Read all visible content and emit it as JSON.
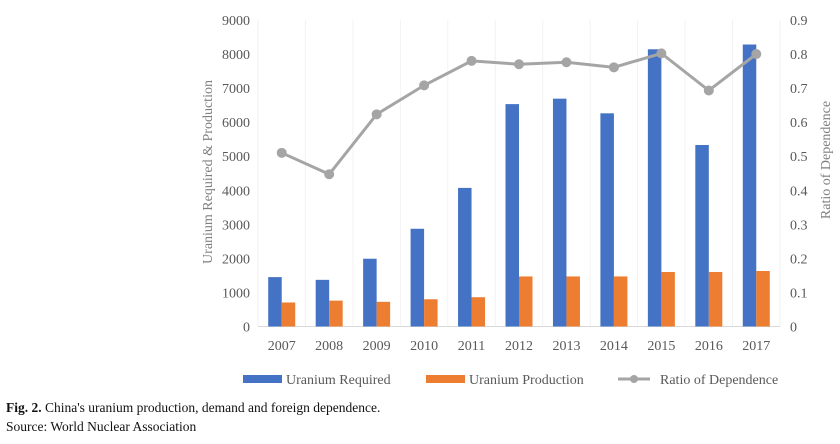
{
  "chart_data": {
    "type": "bar+line",
    "categories": [
      "2007",
      "2008",
      "2009",
      "2010",
      "2011",
      "2012",
      "2013",
      "2014",
      "2015",
      "2016",
      "2017"
    ],
    "series": [
      {
        "name": "Uranium Required",
        "type": "bar",
        "axis": "left",
        "color": "#4472c4",
        "values": [
          1450,
          1370,
          1990,
          2870,
          4070,
          6530,
          6690,
          6260,
          8140,
          5330,
          8280
        ]
      },
      {
        "name": "Uranium Production",
        "type": "bar",
        "axis": "left",
        "color": "#ed7d31",
        "values": [
          705,
          760,
          725,
          800,
          860,
          1470,
          1470,
          1470,
          1600,
          1600,
          1630
        ]
      },
      {
        "name": "Ratio of Dependence",
        "type": "line",
        "axis": "right",
        "color": "#a5a5a5",
        "values": [
          0.51,
          0.447,
          0.623,
          0.708,
          0.78,
          0.77,
          0.776,
          0.761,
          0.802,
          0.693,
          0.8
        ]
      }
    ],
    "ylabel": "Uranium Required & Production",
    "y2label": "Ratio of Dependence",
    "ylim": [
      0,
      9000
    ],
    "y2lim": [
      0,
      0.9
    ],
    "yticks": [
      "0",
      "1000",
      "2000",
      "3000",
      "4000",
      "5000",
      "6000",
      "7000",
      "8000",
      "9000"
    ],
    "y2ticks": [
      "0",
      "0.1",
      "0.2",
      "0.3",
      "0.4",
      "0.5",
      "0.6",
      "0.7",
      "0.8",
      "0.9"
    ],
    "grid": true,
    "legend": "bottom"
  },
  "caption": {
    "label": "Fig. 2.",
    "text": " China's uranium production, demand and foreign dependence."
  },
  "source": "Source: World Nuclear Association"
}
